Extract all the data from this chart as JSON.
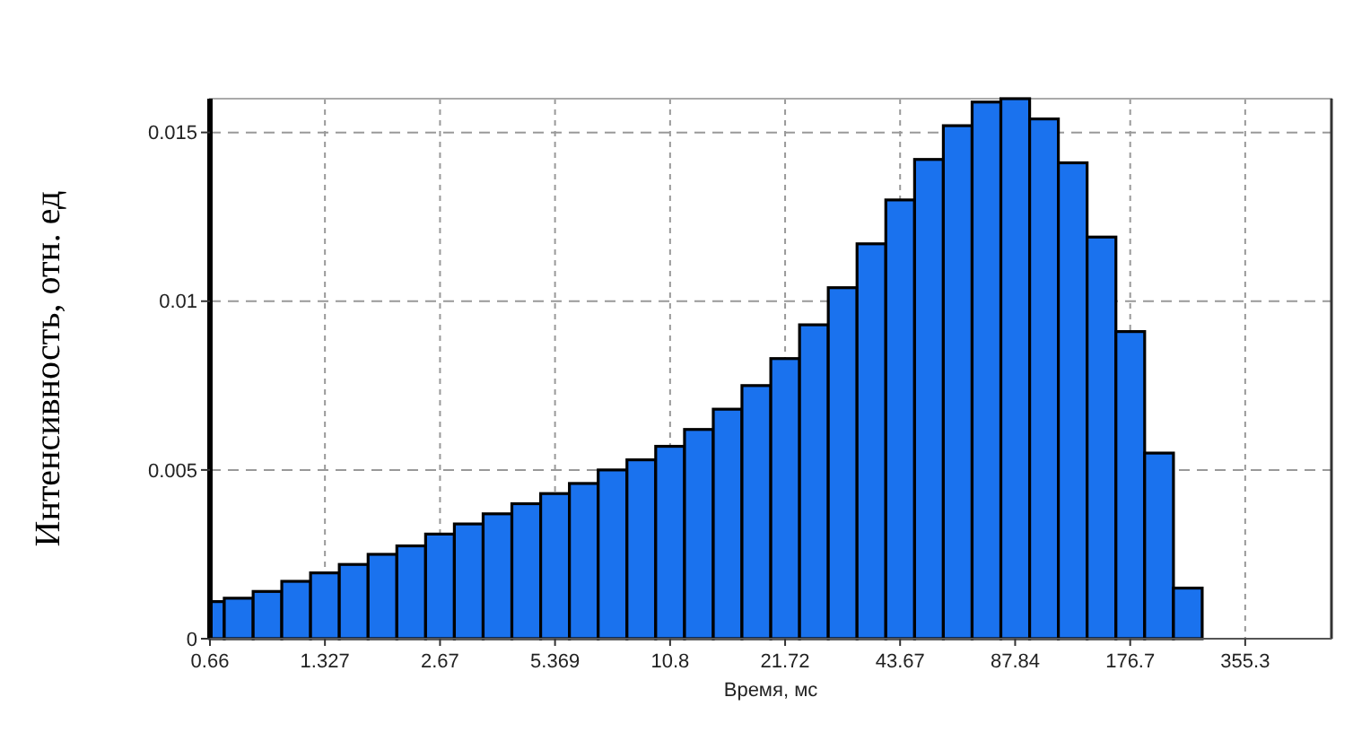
{
  "chart_data": {
    "type": "histogram",
    "xlabel": "Время, мс",
    "ylabel": "Интенсивность, отн. ед",
    "bins": [
      0.66,
      0.72,
      0.858,
      1.021,
      1.216,
      1.448,
      1.725,
      2.054,
      2.446,
      2.913,
      3.469,
      4.131,
      4.92,
      5.859,
      6.978,
      8.31,
      9.896,
      11.79,
      14.04,
      16.71,
      19.91,
      23.71,
      28.23,
      33.62,
      40.04,
      47.69,
      56.79,
      67.63,
      80.54,
      95.92,
      114.2,
      136,
      162,
      192.9,
      229.8,
      273.6
    ],
    "values": [
      0.0011,
      0.0012,
      0.0014,
      0.0017,
      0.00195,
      0.0022,
      0.0025,
      0.00275,
      0.0031,
      0.0034,
      0.0037,
      0.004,
      0.0043,
      0.0046,
      0.005,
      0.0053,
      0.0057,
      0.0062,
      0.0068,
      0.0075,
      0.0083,
      0.0093,
      0.0104,
      0.0117,
      0.013,
      0.0142,
      0.0152,
      0.0159,
      0.016,
      0.0154,
      0.0141,
      0.0119,
      0.0091,
      0.0055,
      0.0015
    ],
    "color": "#1a72ee",
    "log": "x",
    "xlim": [
      0.66,
      600
    ],
    "ylim": [
      0,
      0.016
    ],
    "xticks": [
      0.66,
      1.327,
      2.67,
      5.369,
      10.8,
      21.72,
      43.67,
      87.84,
      176.7,
      355.3
    ],
    "yticks": [
      0,
      0.005,
      0.01,
      0.015
    ],
    "grid": true
  }
}
